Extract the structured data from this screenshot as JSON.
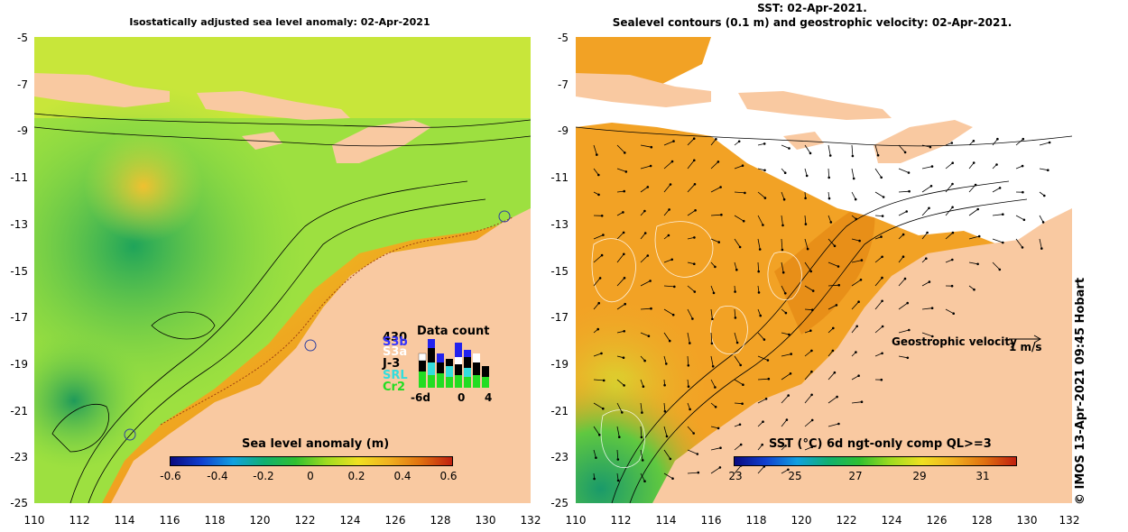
{
  "left": {
    "title": "Isostatically adjusted sea level anomaly: 02-Apr-2021",
    "colorbar_title": "Sea level anomaly (m)",
    "colorbar_ticks": [
      "-0.6",
      "-0.4",
      "-0.2",
      "0",
      "0.2",
      "0.4",
      "0.6"
    ],
    "data_count": {
      "title": "Data count",
      "satellites": [
        {
          "label": "430",
          "color": "#000000"
        },
        {
          "label": "S3b",
          "color": "#3333ff"
        },
        {
          "label": "S3a",
          "color": "#ffffff"
        },
        {
          "label": "J-3",
          "color": "#000000"
        },
        {
          "label": "SRL",
          "color": "#33dddd"
        },
        {
          "label": "Cr2",
          "color": "#22dd22"
        }
      ],
      "x_ticks": [
        "-6d",
        "0",
        "4"
      ]
    }
  },
  "right": {
    "title_line1": "SST: 02-Apr-2021.",
    "title_line2": "Sealevel contours (0.1 m) and geostrophic velocity: 02-Apr-2021.",
    "colorbar_title": "SST (°C) 6d ngt-only comp QL>=3",
    "colorbar_ticks": [
      "23",
      "25",
      "27",
      "29",
      "31"
    ],
    "velocity_legend": "Geostrophic velocity",
    "velocity_scale": "1 m/s"
  },
  "axes": {
    "y_ticks": [
      "-5",
      "-7",
      "-9",
      "-11",
      "-13",
      "-15",
      "-17",
      "-19",
      "-21",
      "-23",
      "-25"
    ],
    "x_ticks": [
      "110",
      "112",
      "114",
      "116",
      "118",
      "120",
      "122",
      "124",
      "126",
      "128",
      "130",
      "132"
    ],
    "lon_range": [
      110,
      132
    ],
    "lat_range": [
      -25,
      -5
    ]
  },
  "credit": "© IMOS 13-Apr-2021 09:45 Hobart",
  "colors": {
    "land": "#f9c9a1",
    "ocean_sla": "#9de040",
    "ocean_sst": "#f2a225",
    "contour": "#000000"
  }
}
